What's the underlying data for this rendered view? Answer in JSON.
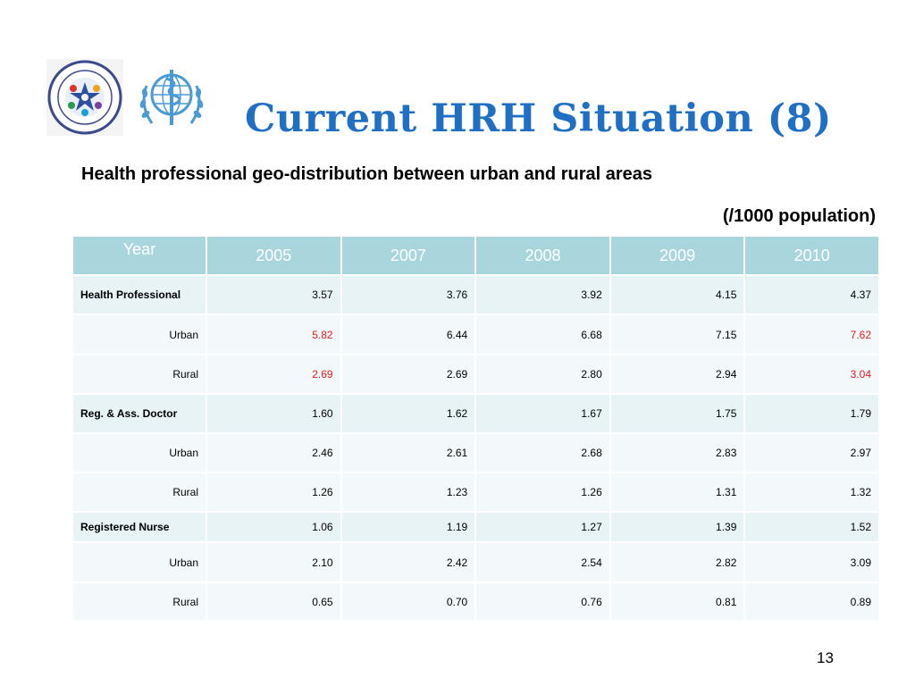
{
  "slide": {
    "title": "Current HRH Situation (8)",
    "subtitle": "Health professional geo-distribution between urban and rural areas",
    "unit": "(/1000 population)",
    "page_number": "13"
  },
  "logos": {
    "left_name": "health-human-resources-development-center-seal",
    "right_name": "who-emblem"
  },
  "colors": {
    "title": "#1f6fc4",
    "header_bg": "#a9d5dd",
    "highlight": "#e3191c"
  },
  "table": {
    "header": [
      "Year",
      "2005",
      "2007",
      "2008",
      "2009",
      "2010"
    ],
    "rows": [
      {
        "label": "Health Professional",
        "group": true,
        "values": [
          "3.57",
          "3.76",
          "3.92",
          "4.15",
          "4.37"
        ],
        "highlight": []
      },
      {
        "label": "Urban",
        "group": false,
        "values": [
          "5.82",
          "6.44",
          "6.68",
          "7.15",
          "7.62"
        ],
        "highlight": [
          0,
          4
        ]
      },
      {
        "label": "Rural",
        "group": false,
        "values": [
          "2.69",
          "2.69",
          "2.80",
          "2.94",
          "3.04"
        ],
        "highlight": [
          0,
          4
        ]
      },
      {
        "label": "Reg. & Ass. Doctor",
        "group": true,
        "values": [
          "1.60",
          "1.62",
          "1.67",
          "1.75",
          "1.79"
        ],
        "highlight": []
      },
      {
        "label": "Urban",
        "group": false,
        "values": [
          "2.46",
          "2.61",
          "2.68",
          "2.83",
          "2.97"
        ],
        "highlight": []
      },
      {
        "label": "Rural",
        "group": false,
        "values": [
          "1.26",
          "1.23",
          "1.26",
          "1.31",
          "1.32"
        ],
        "highlight": []
      },
      {
        "label": "Registered Nurse",
        "group": true,
        "values": [
          "1.06",
          "1.19",
          "1.27",
          "1.39",
          "1.52"
        ],
        "highlight": []
      },
      {
        "label": "Urban",
        "group": false,
        "values": [
          "2.10",
          "2.42",
          "2.54",
          "2.82",
          "3.09"
        ],
        "highlight": []
      },
      {
        "label": "Rural",
        "group": false,
        "values": [
          "0.65",
          "0.70",
          "0.76",
          "0.81",
          "0.89"
        ],
        "highlight": []
      }
    ]
  }
}
